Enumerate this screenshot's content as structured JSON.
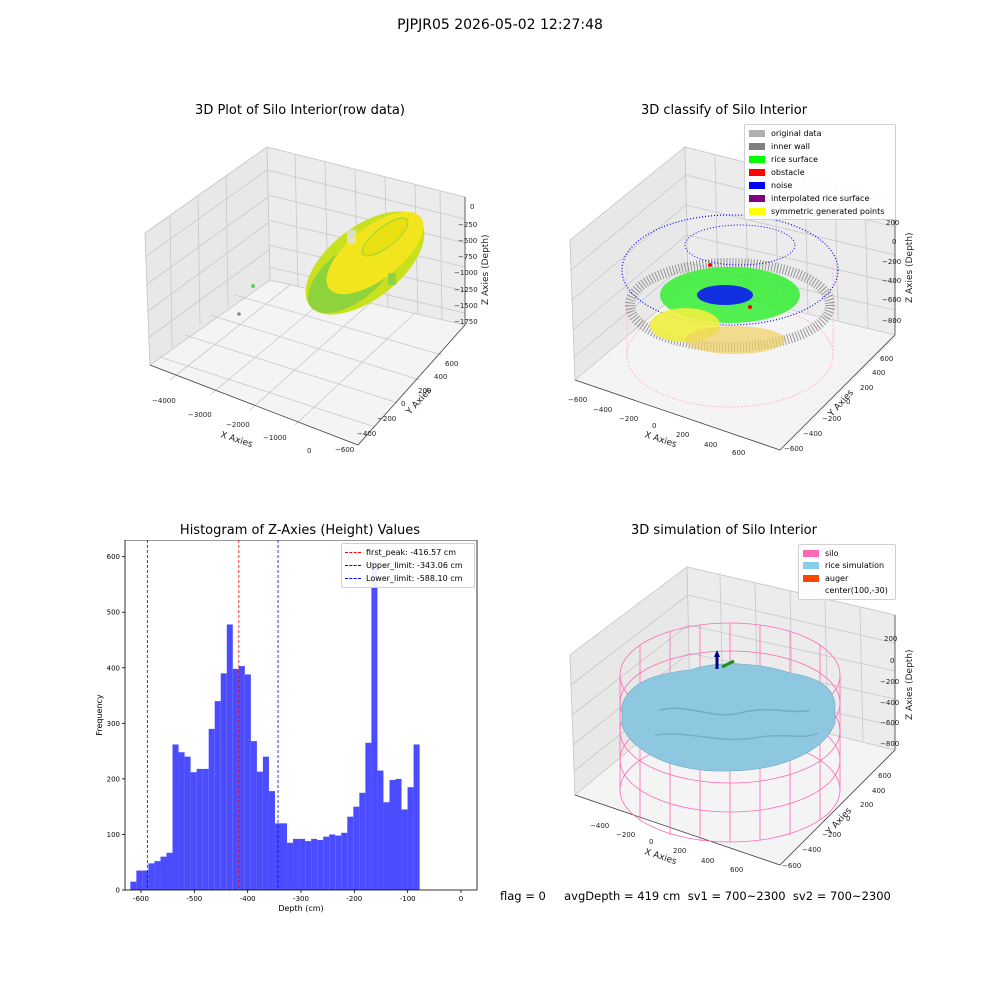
{
  "figure": {
    "suptitle": "PJPJR05 2026-05-02 12:27:48"
  },
  "colors": {
    "yellow": "#f2e51e",
    "green": "#2fd03a",
    "lime": "#00ff00",
    "gray": "#a9a9a9",
    "darkgray": "#808080",
    "blue": "#0000ff",
    "red": "#ff0000",
    "purple": "#800080",
    "pink": "#ff69b4",
    "skyblue": "#87ceeb",
    "orange": "#ff4500",
    "hist": "#4c4cff"
  },
  "panels": {
    "raw": {
      "title": "3D Plot of Silo Interior(row data)",
      "xlabel": "X Axies",
      "ylabel": "Y Axies",
      "zlabel": "Z Axies (Depth)",
      "xticks": [
        "−4000",
        "−3000",
        "−2000",
        "−1000",
        "0"
      ],
      "yticks": [
        "−600",
        "−400",
        "−200",
        "0",
        "200",
        "400",
        "600"
      ],
      "zticks": [
        "0",
        "−250",
        "−500",
        "−750",
        "−1000",
        "−1250",
        "−1500",
        "−1750"
      ]
    },
    "classify": {
      "title": "3D classify of Silo Interior",
      "xlabel": "X Axies",
      "ylabel": "Y Axies",
      "zlabel": "Z Axies (Depth)",
      "xticks": [
        "−600",
        "−400",
        "−200",
        "0",
        "200",
        "400",
        "600"
      ],
      "yticks": [
        "−600",
        "−400",
        "−200",
        "0",
        "200",
        "400",
        "600"
      ],
      "zticks": [
        "200",
        "0",
        "−200",
        "−400",
        "−600",
        "−800"
      ],
      "legend": [
        {
          "label": "original data",
          "color": "#b0b0b0"
        },
        {
          "label": "inner wall",
          "color": "#808080"
        },
        {
          "label": "rice surface",
          "color": "#00ff00"
        },
        {
          "label": "obstacle",
          "color": "#ff0000"
        },
        {
          "label": "noise",
          "color": "#0000ff"
        },
        {
          "label": "interpolated rice surface",
          "color": "#800080"
        },
        {
          "label": "symmetric generated points",
          "color": "#ffff00"
        }
      ]
    },
    "simulation": {
      "title": "3D simulation of Silo Interior",
      "xlabel": "X Axies",
      "ylabel": "Y Axies",
      "zlabel": "Z Axies (Depth)",
      "xticks": [
        "−400",
        "−200",
        "0",
        "200",
        "400",
        "600"
      ],
      "yticks": [
        "−600",
        "−400",
        "−200",
        "0",
        "200",
        "400",
        "600"
      ],
      "zticks": [
        "200",
        "0",
        "−200",
        "−400",
        "−600",
        "−800"
      ],
      "legend": [
        {
          "label": "silo",
          "color": "#ff69b4"
        },
        {
          "label": "rice simulation",
          "color": "#87ceeb"
        },
        {
          "label": "auger",
          "color": "#ff4500"
        },
        {
          "label": "center(100,-30)",
          "color": ""
        }
      ]
    }
  },
  "status_line": "flag = 0     avgDepth = 419 cm  sv1 = 700~2300  sv2 = 700~2300",
  "chart_data": {
    "type": "bar",
    "title": "Histogram of Z-Axies (Height) Values",
    "xlabel": "Depth (cm)",
    "ylabel": "Frequency",
    "xlim": [
      -630,
      30
    ],
    "ylim": [
      0,
      630
    ],
    "xticks": [
      -600,
      -500,
      -400,
      -300,
      -200,
      -100,
      0
    ],
    "yticks": [
      0,
      100,
      200,
      300,
      400,
      500,
      600
    ],
    "bin_edges_start": -620,
    "bin_width": 11.3,
    "values": [
      15,
      35,
      35,
      48,
      52,
      60,
      67,
      262,
      248,
      240,
      212,
      218,
      218,
      290,
      340,
      390,
      478,
      398,
      403,
      388,
      268,
      213,
      240,
      178,
      120,
      120,
      85,
      92,
      92,
      88,
      92,
      90,
      96,
      100,
      98,
      103,
      132,
      150,
      175,
      265,
      590,
      215,
      158,
      198,
      200,
      145,
      185,
      262
    ],
    "lines": [
      {
        "label": "first_peak: -416.57 cm",
        "x": -416.57,
        "color": "#ff0000"
      },
      {
        "label": "Upper_limit: -343.06 cm",
        "x": -343.06,
        "color": "#0000ff"
      },
      {
        "label": "Lower_limit: -588.10 cm",
        "x": -588.1,
        "color": "#0000ff"
      }
    ],
    "legend_position": "top-right"
  }
}
